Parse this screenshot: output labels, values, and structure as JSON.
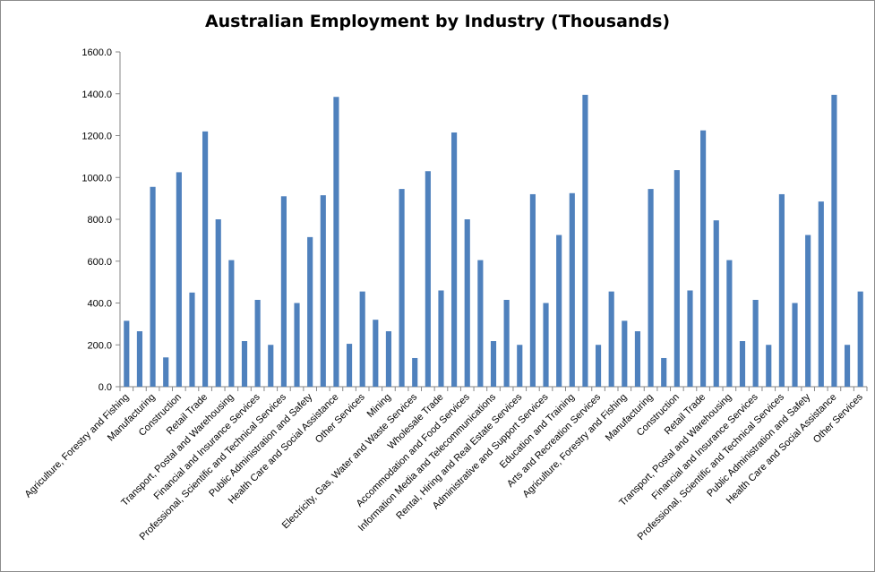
{
  "chart_data": {
    "type": "bar",
    "title": "Australian Employment by Industry (Thousands)",
    "xlabel": "",
    "ylabel": "",
    "ylim": [
      0,
      1600
    ],
    "yticks": [
      "0.0",
      "200.0",
      "400.0",
      "600.0",
      "800.0",
      "1000.0",
      "1200.0",
      "1400.0",
      "1600.0"
    ],
    "grid": false,
    "legend": "none",
    "bar_color": "#4f81bd",
    "categories": [
      "Agriculture, Forestry and Fishing",
      "",
      "Manufacturing",
      "",
      "Construction",
      "",
      "Retail Trade",
      "",
      "Transport, Postal and Warehousing",
      "",
      "Financial and Insurance Services",
      "",
      "Professional, Scientific and Technical Services",
      "",
      "Public Administration and Safety",
      "",
      "Health Care and Social Assistance",
      "",
      "Other Services",
      "",
      "Mining",
      "",
      "Electricity, Gas, Water and Waste Services",
      "",
      "Wholesale Trade",
      "",
      "Accommodation and Food Services",
      "",
      "Information Media and Telecommunications",
      "",
      "Rental, Hiring and Real Estate Services",
      "",
      "Administrative and Support Services",
      "",
      "Education and Training",
      "",
      "Arts and Recreation Services",
      "",
      "Agriculture, Forestry and Fishing",
      "",
      "Manufacturing",
      "",
      "Construction",
      "",
      "Retail Trade",
      "",
      "Transport, Postal and Warehousing",
      "",
      "Financial and Insurance Services",
      "",
      "Professional, Scientific and Technical Services",
      "",
      "Public Administration and Safety",
      "",
      "Health Care and Social Assistance",
      "",
      "Other Services"
    ],
    "values": [
      315,
      265,
      955,
      140,
      1025,
      450,
      1220,
      800,
      605,
      218,
      415,
      200,
      910,
      400,
      715,
      915,
      1385,
      205,
      455,
      320,
      265,
      945,
      137,
      1030,
      460,
      1215,
      800,
      605,
      218,
      415,
      200,
      920,
      400,
      725,
      925,
      1395,
      200,
      455,
      315,
      265,
      945,
      137,
      1035,
      460,
      1225,
      795,
      605,
      218,
      415,
      200,
      920,
      400,
      725,
      885,
      1395,
      200,
      455
    ]
  }
}
